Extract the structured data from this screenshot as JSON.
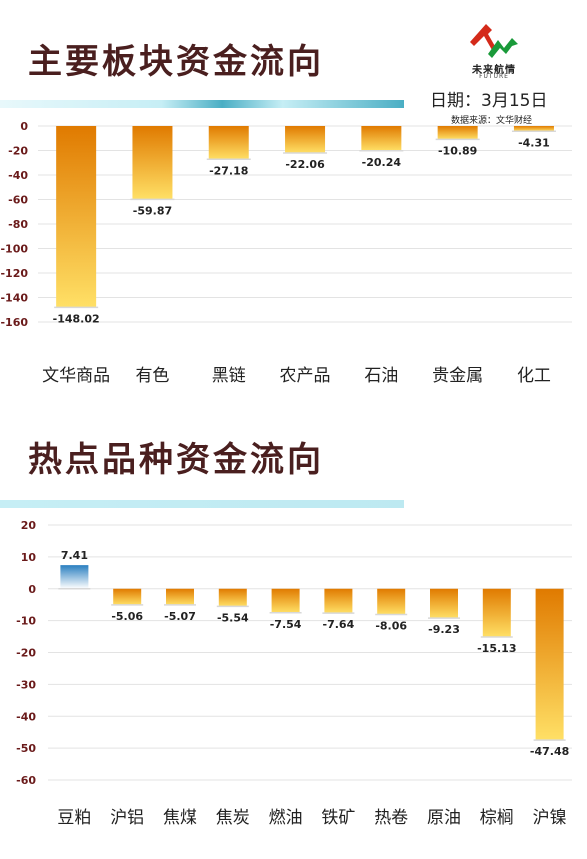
{
  "header": {
    "title": "主要板块资金流向",
    "logo_name": "未来航情",
    "logo_en": "FUTURE",
    "date": "日期：3月15日",
    "source": "数据来源：文华财经"
  },
  "section2": {
    "title": "热点品种资金流向"
  },
  "colors": {
    "title": "#4a1f1f",
    "stripe_light": "#c6eef5",
    "stripe_dark": "#4aaec4",
    "negative_top": "#e07a00",
    "negative_bottom": "#ffe066",
    "positive_top": "#2a7fc0",
    "positive_bottom": "#ffffff",
    "tick": "#6a1a1a"
  },
  "chart_data": [
    {
      "type": "bar",
      "title": "主要板块资金流向",
      "categories": [
        "文华商品",
        "有色",
        "黑链",
        "农产品",
        "石油",
        "贵金属",
        "化工"
      ],
      "values": [
        -148.02,
        -59.87,
        -27.18,
        -22.06,
        -20.24,
        -10.89,
        -4.31
      ],
      "labels": [
        "-148.02",
        "-59.87",
        "-27.18",
        "-22.06",
        "-20.24",
        "-10.89",
        "-4.31"
      ],
      "yticks": [
        0,
        -20,
        -40,
        -60,
        -80,
        -100,
        -120,
        -140,
        -160
      ],
      "ylim": [
        -160,
        0
      ],
      "grid": true,
      "legend": "none",
      "xlabel": "",
      "ylabel": ""
    },
    {
      "type": "bar",
      "title": "热点品种资金流向",
      "categories": [
        "豆粕",
        "沪铝",
        "焦煤",
        "焦炭",
        "燃油",
        "铁矿",
        "热卷",
        "原油",
        "棕榈",
        "沪镍"
      ],
      "values": [
        7.41,
        -5.06,
        -5.07,
        -5.54,
        -7.54,
        -7.64,
        -8.06,
        -9.23,
        -15.13,
        -47.48
      ],
      "labels": [
        "7.41",
        "-5.06",
        "-5.07",
        "-5.54",
        "-7.54",
        "-7.64",
        "-8.06",
        "-9.23",
        "-15.13",
        "-47.48"
      ],
      "yticks": [
        20,
        10,
        0,
        -10,
        -20,
        -30,
        -40,
        -50,
        -60
      ],
      "ylim": [
        -60,
        20
      ],
      "grid": true,
      "legend": "none",
      "xlabel": "",
      "ylabel": ""
    }
  ]
}
